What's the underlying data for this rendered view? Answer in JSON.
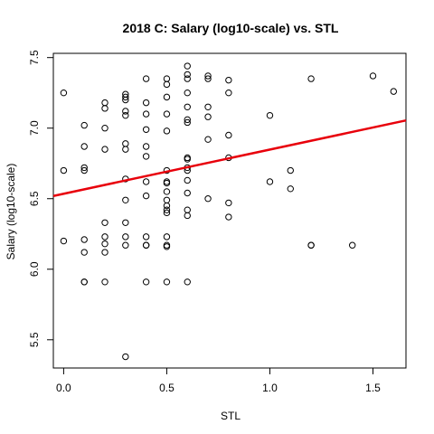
{
  "chart_data": {
    "type": "scatter",
    "title": "2018 C: Salary (log10-scale) vs. STL",
    "xlabel": "STL",
    "ylabel": "Salary (log10-scale)",
    "xlim": [
      -0.05,
      1.66
    ],
    "ylim": [
      5.3,
      7.53
    ],
    "xticks": [
      0.0,
      0.5,
      1.0,
      1.5
    ],
    "xtick_labels": [
      "0.0",
      "0.5",
      "1.0",
      "1.5"
    ],
    "yticks": [
      5.5,
      6.0,
      6.5,
      7.0,
      7.5
    ],
    "ytick_labels": [
      "5.5",
      "6.0",
      "6.5",
      "7.0",
      "7.5"
    ],
    "grid": false,
    "legend": "none",
    "point_color": "#000000",
    "fit_color": "#e8000b",
    "fit_line": {
      "intercept": 6.535,
      "slope": 0.313
    },
    "points": [
      {
        "x": 0.0,
        "y": 7.25
      },
      {
        "x": 0.0,
        "y": 6.7
      },
      {
        "x": 0.0,
        "y": 6.2
      },
      {
        "x": 0.1,
        "y": 7.02
      },
      {
        "x": 0.1,
        "y": 6.87
      },
      {
        "x": 0.1,
        "y": 6.72
      },
      {
        "x": 0.1,
        "y": 6.7
      },
      {
        "x": 0.1,
        "y": 6.21
      },
      {
        "x": 0.1,
        "y": 6.12
      },
      {
        "x": 0.1,
        "y": 5.91
      },
      {
        "x": 0.1,
        "y": 5.91
      },
      {
        "x": 0.2,
        "y": 7.18
      },
      {
        "x": 0.2,
        "y": 7.14
      },
      {
        "x": 0.2,
        "y": 7.0
      },
      {
        "x": 0.2,
        "y": 6.85
      },
      {
        "x": 0.2,
        "y": 6.33
      },
      {
        "x": 0.2,
        "y": 6.23
      },
      {
        "x": 0.2,
        "y": 6.18
      },
      {
        "x": 0.2,
        "y": 6.12
      },
      {
        "x": 0.2,
        "y": 5.91
      },
      {
        "x": 0.3,
        "y": 7.24
      },
      {
        "x": 0.3,
        "y": 7.22
      },
      {
        "x": 0.3,
        "y": 7.2
      },
      {
        "x": 0.3,
        "y": 7.12
      },
      {
        "x": 0.3,
        "y": 7.09
      },
      {
        "x": 0.3,
        "y": 6.89
      },
      {
        "x": 0.3,
        "y": 6.85
      },
      {
        "x": 0.3,
        "y": 6.64
      },
      {
        "x": 0.3,
        "y": 6.49
      },
      {
        "x": 0.3,
        "y": 6.33
      },
      {
        "x": 0.3,
        "y": 6.23
      },
      {
        "x": 0.3,
        "y": 6.17
      },
      {
        "x": 0.3,
        "y": 5.38
      },
      {
        "x": 0.4,
        "y": 7.35
      },
      {
        "x": 0.4,
        "y": 7.18
      },
      {
        "x": 0.4,
        "y": 7.1
      },
      {
        "x": 0.4,
        "y": 6.99
      },
      {
        "x": 0.4,
        "y": 6.87
      },
      {
        "x": 0.4,
        "y": 6.8
      },
      {
        "x": 0.4,
        "y": 6.62
      },
      {
        "x": 0.4,
        "y": 6.52
      },
      {
        "x": 0.4,
        "y": 6.23
      },
      {
        "x": 0.4,
        "y": 6.17
      },
      {
        "x": 0.4,
        "y": 6.17
      },
      {
        "x": 0.4,
        "y": 5.91
      },
      {
        "x": 0.5,
        "y": 7.35
      },
      {
        "x": 0.5,
        "y": 7.31
      },
      {
        "x": 0.5,
        "y": 7.22
      },
      {
        "x": 0.5,
        "y": 7.1
      },
      {
        "x": 0.5,
        "y": 6.98
      },
      {
        "x": 0.5,
        "y": 6.7
      },
      {
        "x": 0.5,
        "y": 6.62
      },
      {
        "x": 0.5,
        "y": 6.61
      },
      {
        "x": 0.5,
        "y": 6.55
      },
      {
        "x": 0.5,
        "y": 6.49
      },
      {
        "x": 0.5,
        "y": 6.45
      },
      {
        "x": 0.5,
        "y": 6.42
      },
      {
        "x": 0.5,
        "y": 6.4
      },
      {
        "x": 0.5,
        "y": 6.23
      },
      {
        "x": 0.5,
        "y": 6.17
      },
      {
        "x": 0.5,
        "y": 6.16
      },
      {
        "x": 0.5,
        "y": 5.91
      },
      {
        "x": 0.6,
        "y": 7.44
      },
      {
        "x": 0.6,
        "y": 7.38
      },
      {
        "x": 0.6,
        "y": 7.35
      },
      {
        "x": 0.6,
        "y": 7.25
      },
      {
        "x": 0.6,
        "y": 7.15
      },
      {
        "x": 0.6,
        "y": 7.06
      },
      {
        "x": 0.6,
        "y": 7.04
      },
      {
        "x": 0.6,
        "y": 6.79
      },
      {
        "x": 0.6,
        "y": 6.78
      },
      {
        "x": 0.6,
        "y": 6.72
      },
      {
        "x": 0.6,
        "y": 6.7
      },
      {
        "x": 0.6,
        "y": 6.63
      },
      {
        "x": 0.6,
        "y": 6.54
      },
      {
        "x": 0.6,
        "y": 6.42
      },
      {
        "x": 0.6,
        "y": 6.38
      },
      {
        "x": 0.6,
        "y": 5.91
      },
      {
        "x": 0.7,
        "y": 7.37
      },
      {
        "x": 0.7,
        "y": 7.35
      },
      {
        "x": 0.7,
        "y": 7.15
      },
      {
        "x": 0.7,
        "y": 7.08
      },
      {
        "x": 0.7,
        "y": 6.92
      },
      {
        "x": 0.7,
        "y": 6.5
      },
      {
        "x": 0.8,
        "y": 7.34
      },
      {
        "x": 0.8,
        "y": 7.25
      },
      {
        "x": 0.8,
        "y": 6.95
      },
      {
        "x": 0.8,
        "y": 6.79
      },
      {
        "x": 0.8,
        "y": 6.47
      },
      {
        "x": 0.8,
        "y": 6.37
      },
      {
        "x": 1.0,
        "y": 7.09
      },
      {
        "x": 1.0,
        "y": 6.62
      },
      {
        "x": 1.1,
        "y": 6.7
      },
      {
        "x": 1.1,
        "y": 6.57
      },
      {
        "x": 1.2,
        "y": 7.35
      },
      {
        "x": 1.2,
        "y": 6.17
      },
      {
        "x": 1.2,
        "y": 6.17
      },
      {
        "x": 1.4,
        "y": 6.17
      },
      {
        "x": 1.5,
        "y": 7.37
      },
      {
        "x": 1.6,
        "y": 7.26
      }
    ]
  }
}
